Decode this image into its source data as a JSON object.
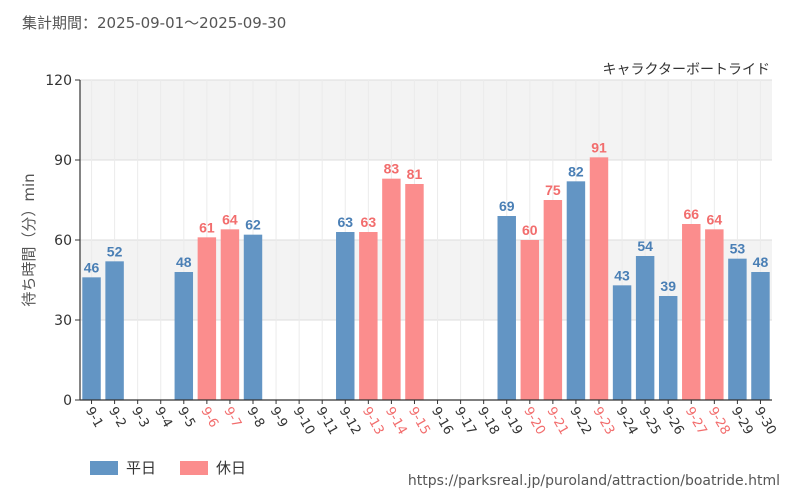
{
  "header": {
    "period": "集計期間：2025-09-01～2025-09-30"
  },
  "source_url": "https://parksreal.jp/puroland/attraction/boatride.html",
  "colors": {
    "weekday": "#6395c4",
    "holiday": "#fb8d8d",
    "band": "#f3f3f3",
    "grid": "#dddddd"
  },
  "chart_data": {
    "type": "bar",
    "title": "キャラクターボートライド",
    "ylabel": "待ち時間（分）min",
    "xlabel": "",
    "ylim": [
      0,
      120
    ],
    "yticks": [
      0,
      30,
      60,
      90,
      120
    ],
    "legend": [
      {
        "key": "weekday",
        "label": "平日"
      },
      {
        "key": "holiday",
        "label": "休日"
      }
    ],
    "categories": [
      "9-1",
      "9-2",
      "9-3",
      "9-4",
      "9-5",
      "9-6",
      "9-7",
      "9-8",
      "9-9",
      "9-10",
      "9-11",
      "9-12",
      "9-13",
      "9-14",
      "9-15",
      "9-16",
      "9-17",
      "9-18",
      "9-19",
      "9-20",
      "9-21",
      "9-22",
      "9-23",
      "9-24",
      "9-25",
      "9-26",
      "9-27",
      "9-28",
      "9-29",
      "9-30"
    ],
    "values": [
      46,
      52,
      null,
      null,
      48,
      61,
      64,
      62,
      null,
      null,
      null,
      63,
      63,
      83,
      81,
      null,
      null,
      null,
      69,
      60,
      75,
      82,
      91,
      43,
      54,
      39,
      66,
      64,
      53,
      48
    ],
    "day_type": [
      "weekday",
      "weekday",
      "weekday",
      "weekday",
      "weekday",
      "holiday",
      "holiday",
      "weekday",
      "weekday",
      "weekday",
      "weekday",
      "weekday",
      "holiday",
      "holiday",
      "holiday",
      "weekday",
      "weekday",
      "weekday",
      "weekday",
      "holiday",
      "holiday",
      "weekday",
      "holiday",
      "weekday",
      "weekday",
      "weekday",
      "holiday",
      "holiday",
      "weekday",
      "weekday"
    ]
  }
}
